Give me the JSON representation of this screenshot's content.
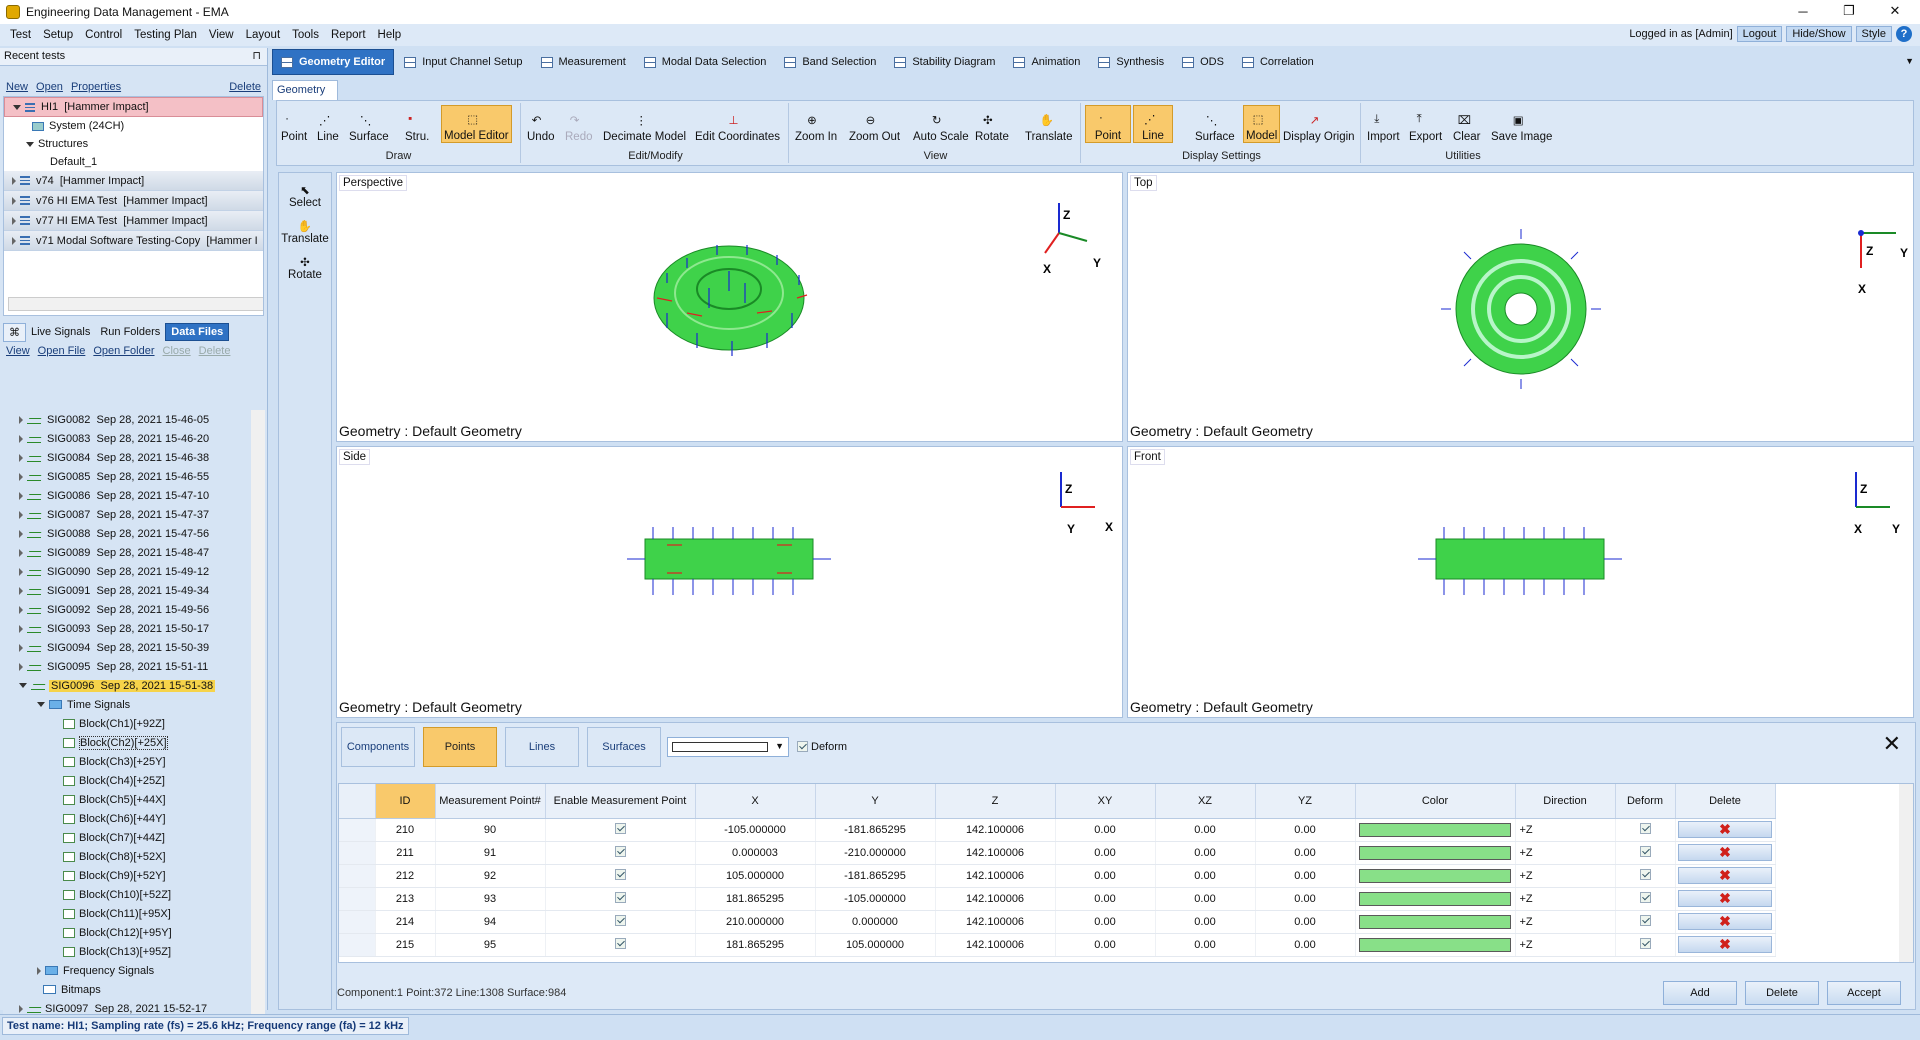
{
  "window": {
    "title": "Engineering Data Management - EMA",
    "min": "─",
    "restore": "❐",
    "close": "✕"
  },
  "menu": [
    "Test",
    "Setup",
    "Control",
    "Testing Plan",
    "View",
    "Layout",
    "Tools",
    "Report",
    "Help"
  ],
  "user": {
    "logged": "Logged in as [Admin]",
    "logout": "Logout",
    "hideshow": "Hide/Show",
    "style": "Style",
    "help": "?"
  },
  "left": {
    "recent_title": "Recent tests",
    "pin": "⊓",
    "links": [
      "New",
      "Open",
      "Properties",
      "Delete"
    ],
    "tests": [
      {
        "name": "HI1",
        "type": "[Hammer Impact]"
      },
      {
        "name": "v74",
        "type": "[Hammer Impact]"
      },
      {
        "name": "v76 HI EMA Test",
        "type": "[Hammer Impact]"
      },
      {
        "name": "v77 HI EMA Test",
        "type": "[Hammer Impact]"
      },
      {
        "name": "v71 Modal Software Testing-Copy",
        "type": "[Hammer I"
      }
    ],
    "tree": {
      "system": "System (24CH)",
      "structures": "Structures",
      "default": "Default_1"
    },
    "tabs": [
      "Live Signals",
      "Run Folders",
      "Data Files"
    ],
    "filelinks": [
      "View",
      "Open File",
      "Open Folder",
      "Close",
      "Delete"
    ],
    "files": [
      {
        "id": "SIG0082",
        "date": "Sep 28, 2021 15-46-05"
      },
      {
        "id": "SIG0083",
        "date": "Sep 28, 2021 15-46-20"
      },
      {
        "id": "SIG0084",
        "date": "Sep 28, 2021 15-46-38"
      },
      {
        "id": "SIG0085",
        "date": "Sep 28, 2021 15-46-55"
      },
      {
        "id": "SIG0086",
        "date": "Sep 28, 2021 15-47-10"
      },
      {
        "id": "SIG0087",
        "date": "Sep 28, 2021 15-47-37"
      },
      {
        "id": "SIG0088",
        "date": "Sep 28, 2021 15-47-56"
      },
      {
        "id": "SIG0089",
        "date": "Sep 28, 2021 15-48-47"
      },
      {
        "id": "SIG0090",
        "date": "Sep 28, 2021 15-49-12"
      },
      {
        "id": "SIG0091",
        "date": "Sep 28, 2021 15-49-34"
      },
      {
        "id": "SIG0092",
        "date": "Sep 28, 2021 15-49-56"
      },
      {
        "id": "SIG0093",
        "date": "Sep 28, 2021 15-50-17"
      },
      {
        "id": "SIG0094",
        "date": "Sep 28, 2021 15-50-39"
      },
      {
        "id": "SIG0095",
        "date": "Sep 28, 2021 15-51-11"
      },
      {
        "id": "SIG0096",
        "date": "Sep 28, 2021 15-51-38"
      }
    ],
    "time_signals": "Time Signals",
    "blocks": [
      "Block(Ch1)[+92Z]",
      "Block(Ch2)[+25X]",
      "Block(Ch3)[+25Y]",
      "Block(Ch4)[+25Z]",
      "Block(Ch5)[+44X]",
      "Block(Ch6)[+44Y]",
      "Block(Ch7)[+44Z]",
      "Block(Ch8)[+52X]",
      "Block(Ch9)[+52Y]",
      "Block(Ch10)[+52Z]",
      "Block(Ch11)[+95X]",
      "Block(Ch12)[+95Y]",
      "Block(Ch13)[+95Z]"
    ],
    "freq": "Frequency Signals",
    "bitmaps": "Bitmaps",
    "last": {
      "id": "SIG0097",
      "date": "Sep 28, 2021 15-52-17"
    }
  },
  "nav": [
    "Geometry Editor",
    "Input Channel Setup",
    "Measurement",
    "Modal Data Selection",
    "Band Selection",
    "Stability Diagram",
    "Animation",
    "Synthesis",
    "ODS",
    "Correlation"
  ],
  "subtab": "Geometry",
  "ribbon": {
    "draw": {
      "label": "Draw",
      "items": [
        "Point",
        "Line",
        "Surface",
        "Stru.",
        "Model Editor"
      ]
    },
    "edit": {
      "label": "Edit/Modify",
      "items": [
        "Undo",
        "Redo",
        "Decimate Model",
        "Edit Coordinates"
      ]
    },
    "view": {
      "label": "View",
      "items": [
        "Zoom In",
        "Zoom Out",
        "Auto Scale",
        "Rotate",
        "Translate"
      ]
    },
    "display": {
      "label": "Display Settings",
      "items": [
        "Point",
        "Line",
        "Surface",
        "Model",
        "Display Origin"
      ]
    },
    "util": {
      "label": "Utilities",
      "items": [
        "Import",
        "Export",
        "Clear",
        "Save Image"
      ]
    }
  },
  "tools": [
    "Select",
    "Translate",
    "Rotate"
  ],
  "viewports": [
    {
      "label": "Perspective",
      "caption": "Geometry : Default Geometry"
    },
    {
      "label": "Top",
      "caption": "Geometry : Default Geometry"
    },
    {
      "label": "Side",
      "caption": "Geometry : Default Geometry"
    },
    {
      "label": "Front",
      "caption": "Geometry : Default Geometry"
    }
  ],
  "axes": {
    "x": "X",
    "y": "Y",
    "z": "Z"
  },
  "data": {
    "tabs": [
      "Components",
      "Points",
      "Lines",
      "Surfaces"
    ],
    "deform": "Deform",
    "close": "✕",
    "headers": [
      "ID",
      "Measurement Point#",
      "Enable Measurement Point",
      "X",
      "Y",
      "Z",
      "XY",
      "XZ",
      "YZ",
      "Color",
      "Direction",
      "Deform",
      "Delete"
    ],
    "rows": [
      {
        "id": "210",
        "mp": "90",
        "x": "-105.000000",
        "y": "-181.865295",
        "z": "142.100006",
        "xy": "0.00",
        "xz": "0.00",
        "yz": "0.00",
        "dir": "+Z"
      },
      {
        "id": "211",
        "mp": "91",
        "x": "0.000003",
        "y": "-210.000000",
        "z": "142.100006",
        "xy": "0.00",
        "xz": "0.00",
        "yz": "0.00",
        "dir": "+Z"
      },
      {
        "id": "212",
        "mp": "92",
        "x": "105.000000",
        "y": "-181.865295",
        "z": "142.100006",
        "xy": "0.00",
        "xz": "0.00",
        "yz": "0.00",
        "dir": "+Z"
      },
      {
        "id": "213",
        "mp": "93",
        "x": "181.865295",
        "y": "-105.000000",
        "z": "142.100006",
        "xy": "0.00",
        "xz": "0.00",
        "yz": "0.00",
        "dir": "+Z"
      },
      {
        "id": "214",
        "mp": "94",
        "x": "210.000000",
        "y": "0.000000",
        "z": "142.100006",
        "xy": "0.00",
        "xz": "0.00",
        "yz": "0.00",
        "dir": "+Z"
      },
      {
        "id": "215",
        "mp": "95",
        "x": "181.865295",
        "y": "105.000000",
        "z": "142.100006",
        "xy": "0.00",
        "xz": "0.00",
        "yz": "0.00",
        "dir": "+Z"
      }
    ],
    "del_mark": "✖",
    "summary": "Component:1  Point:372  Line:1308  Surface:984",
    "buttons": [
      "Add",
      "Delete",
      "Accept"
    ]
  },
  "status": "Test name: HI1; Sampling rate (fs) = 25.6 kHz; Frequency range (fa) = 12 kHz",
  "colors": {
    "accent": "#2f72c4",
    "highlight": "#f9c96b",
    "mesh": "#3fd24a",
    "selected": "#f4c0c6"
  }
}
